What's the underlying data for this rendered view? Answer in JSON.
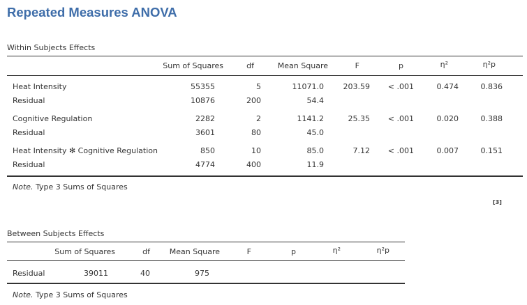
{
  "title": "Repeated Measures ANOVA",
  "within": {
    "caption": "Within Subjects Effects",
    "headers": {
      "ss": "Sum of Squares",
      "df": "df",
      "ms": "Mean Square",
      "f": "F",
      "p": "p",
      "eta": "η²",
      "etap": "η²p"
    },
    "rows": [
      {
        "label": "Heat Intensity",
        "ss": "55355",
        "df": "5",
        "ms": "11071.0",
        "f": "203.59",
        "p": "< .001",
        "eta": "0.474",
        "etap": "0.836"
      },
      {
        "label": "Residual",
        "ss": "10876",
        "df": "200",
        "ms": "54.4",
        "f": "",
        "p": "",
        "eta": "",
        "etap": ""
      },
      {
        "label": "Cognitive Regulation",
        "ss": "2282",
        "df": "2",
        "ms": "1141.2",
        "f": "25.35",
        "p": "< .001",
        "eta": "0.020",
        "etap": "0.388"
      },
      {
        "label": "Residual",
        "ss": "3601",
        "df": "80",
        "ms": "45.0",
        "f": "",
        "p": "",
        "eta": "",
        "etap": ""
      },
      {
        "label": "Heat Intensity ✻ Cognitive Regulation",
        "ss": "850",
        "df": "10",
        "ms": "85.0",
        "f": "7.12",
        "p": "< .001",
        "eta": "0.007",
        "etap": "0.151"
      },
      {
        "label": "Residual",
        "ss": "4774",
        "df": "400",
        "ms": "11.9",
        "f": "",
        "p": "",
        "eta": "",
        "etap": ""
      }
    ],
    "note_label": "Note.",
    "note_text": " Type 3 Sums of Squares"
  },
  "ref": "[3]",
  "between": {
    "caption": "Between Subjects Effects",
    "headers": {
      "ss": "Sum of Squares",
      "df": "df",
      "ms": "Mean Square",
      "f": "F",
      "p": "p",
      "eta": "η²",
      "etap": "η²p"
    },
    "rows": [
      {
        "label": "Residual",
        "ss": "39011",
        "df": "40",
        "ms": "975"
      }
    ],
    "note_label": "Note.",
    "note_text": " Type 3 Sums of Squares"
  }
}
